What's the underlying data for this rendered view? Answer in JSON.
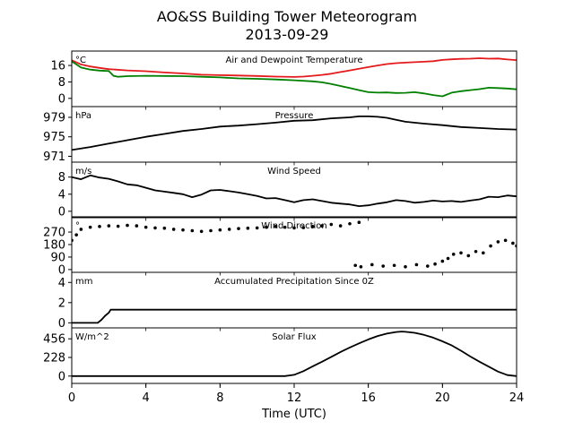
{
  "figure": {
    "title_line1": "AO&SS Building Tower Meteorogram",
    "title_line2": "2013-09-29",
    "xlabel": "Time (UTC)",
    "x_ticks": [
      "0",
      "4",
      "8",
      "12",
      "16",
      "20",
      "24"
    ]
  },
  "chart_data": [
    {
      "type": "line",
      "title": "Air and Dewpoint Temperature",
      "unit": "°C",
      "xlim": [
        0,
        24
      ],
      "ylim": [
        -4,
        23
      ],
      "yticks": [
        0,
        8,
        16
      ],
      "series": [
        {
          "color": "#e41a1c",
          "x": [
            0,
            0.25,
            0.5,
            1,
            1.5,
            2,
            3,
            4,
            5,
            6,
            7,
            8,
            9,
            10,
            11,
            12,
            12.5,
            13,
            13.5,
            14,
            14.5,
            15,
            15.5,
            16,
            16.5,
            17,
            17.5,
            18,
            18.5,
            19,
            19.5,
            20,
            20.5,
            21,
            21.5,
            22,
            22.5,
            23,
            23.5,
            24
          ],
          "y": [
            18.5,
            17.5,
            16.5,
            15.5,
            14.8,
            14.2,
            13.6,
            13.2,
            12.6,
            12.1,
            11.5,
            11.3,
            11.1,
            10.9,
            10.6,
            10.4,
            10.6,
            11.0,
            11.4,
            12.0,
            12.8,
            13.6,
            14.4,
            15.2,
            16.0,
            16.7,
            17.1,
            17.4,
            17.6,
            17.8,
            18.1,
            18.7,
            19.0,
            19.2,
            19.3,
            19.5,
            19.3,
            19.4,
            18.9,
            18.6
          ]
        },
        {
          "color": "#008000",
          "x": [
            0,
            0.25,
            0.5,
            1,
            1.5,
            2,
            2.25,
            2.5,
            3,
            4,
            5,
            6,
            7,
            8,
            9,
            10,
            11,
            12,
            13,
            13.5,
            14,
            14.5,
            15,
            15.5,
            16,
            16.5,
            17,
            17.5,
            18,
            18.5,
            19,
            19.5,
            20,
            20.5,
            21,
            21.5,
            22,
            22.5,
            23,
            23.5,
            24
          ],
          "y": [
            18.0,
            16.5,
            15.0,
            14.0,
            13.5,
            13.3,
            11.0,
            10.5,
            10.8,
            11.0,
            10.9,
            10.8,
            10.5,
            10.2,
            9.7,
            9.5,
            9.2,
            8.8,
            8.3,
            7.8,
            7.0,
            6.0,
            5.0,
            4.0,
            3.0,
            2.8,
            2.9,
            2.6,
            2.7,
            3.0,
            2.4,
            1.6,
            1.0,
            2.8,
            3.5,
            4.0,
            4.5,
            5.2,
            5.0,
            4.8,
            4.4
          ]
        }
      ]
    },
    {
      "type": "line",
      "title": "Pressure",
      "unit": "hPa",
      "xlim": [
        0,
        24
      ],
      "ylim": [
        969.8,
        981.2
      ],
      "yticks": [
        971,
        975,
        979
      ],
      "series": [
        {
          "color": "#000000",
          "x": [
            0,
            1,
            2,
            3,
            4,
            5,
            6,
            7,
            8,
            9,
            10,
            11,
            12,
            13,
            14,
            15,
            15.5,
            16,
            16.5,
            17,
            17.5,
            18,
            19,
            20,
            21,
            22,
            23,
            24
          ],
          "y": [
            972.3,
            972.9,
            973.6,
            974.3,
            975.0,
            975.6,
            976.2,
            976.6,
            977.1,
            977.3,
            977.6,
            977.9,
            978.3,
            978.4,
            978.8,
            979.0,
            979.2,
            979.2,
            979.1,
            978.9,
            978.5,
            978.1,
            977.7,
            977.4,
            977.0,
            976.8,
            976.6,
            976.5
          ]
        }
      ]
    },
    {
      "type": "line",
      "title": "Wind Speed",
      "unit": "m/s",
      "xlim": [
        0,
        24
      ],
      "ylim": [
        -1.5,
        11.5
      ],
      "yticks": [
        0,
        4,
        8
      ],
      "series": [
        {
          "color": "#000000",
          "x": [
            0,
            0.5,
            1,
            1.5,
            2,
            2.5,
            3,
            3.5,
            4,
            4.5,
            5,
            5.5,
            6,
            6.5,
            7,
            7.5,
            8,
            8.5,
            9,
            9.5,
            10,
            10.5,
            11,
            11.5,
            12,
            12.5,
            13,
            13.5,
            14,
            14.5,
            15,
            15.5,
            16,
            16.5,
            17,
            17.5,
            18,
            18.5,
            19,
            19.5,
            20,
            20.5,
            21,
            21.5,
            22,
            22.5,
            23,
            23.5,
            24
          ],
          "y": [
            8.0,
            7.5,
            8.4,
            7.9,
            7.6,
            7.0,
            6.3,
            6.1,
            5.5,
            4.9,
            4.6,
            4.3,
            4.0,
            3.3,
            3.9,
            4.9,
            5.0,
            4.7,
            4.4,
            4.0,
            3.6,
            3.0,
            3.1,
            2.6,
            2.1,
            2.6,
            2.8,
            2.4,
            2.0,
            1.8,
            1.6,
            1.2,
            1.4,
            1.8,
            2.1,
            2.6,
            2.4,
            2.0,
            2.2,
            2.5,
            2.3,
            2.4,
            2.2,
            2.5,
            2.8,
            3.4,
            3.3,
            3.7,
            3.5
          ]
        }
      ]
    },
    {
      "type": "scatter",
      "title": "Wind Direction",
      "unit": "°",
      "xlim": [
        0,
        24
      ],
      "ylim": [
        -20,
        380
      ],
      "yticks": [
        0,
        90,
        180,
        270
      ],
      "series": [
        {
          "color": "#000000",
          "x": [
            0,
            0.25,
            0.5,
            1,
            1.5,
            2,
            2.5,
            3,
            3.5,
            4,
            4.5,
            5,
            5.5,
            6,
            6.5,
            7,
            7.5,
            8,
            8.5,
            9,
            9.5,
            10,
            10.5,
            11,
            11.5,
            12,
            12.5,
            13,
            13.5,
            14,
            14.5,
            15,
            15.5,
            15.3,
            15.6,
            16.2,
            16.8,
            17.4,
            18.0,
            18.6,
            19.2,
            19.6,
            20.0,
            20.3,
            20.6,
            21.0,
            21.4,
            21.8,
            22.2,
            22.6,
            23.0,
            23.4,
            23.8,
            24
          ],
          "y": [
            210,
            250,
            290,
            305,
            310,
            315,
            312,
            318,
            315,
            305,
            300,
            298,
            290,
            285,
            280,
            275,
            280,
            285,
            290,
            295,
            298,
            300,
            305,
            310,
            305,
            300,
            302,
            310,
            315,
            325,
            315,
            330,
            340,
            30,
            20,
            35,
            25,
            30,
            20,
            35,
            25,
            40,
            60,
            80,
            110,
            120,
            100,
            130,
            120,
            170,
            200,
            210,
            190,
            170
          ]
        }
      ]
    },
    {
      "type": "line",
      "title": "Accumulated Precipitation Since 0Z",
      "unit": "mm",
      "xlim": [
        0,
        24
      ],
      "ylim": [
        -0.5,
        5.0
      ],
      "yticks": [
        0,
        2,
        4
      ],
      "series": [
        {
          "color": "#000000",
          "x": [
            0,
            1.4,
            1.6,
            1.8,
            2.0,
            2.1,
            24
          ],
          "y": [
            0,
            0,
            0.3,
            0.7,
            1.0,
            1.3,
            1.3
          ]
        }
      ]
    },
    {
      "type": "line",
      "title": "Solar Flux",
      "unit": "W/m^2",
      "xlim": [
        0,
        24
      ],
      "ylim": [
        -90,
        590
      ],
      "yticks": [
        0,
        228,
        456
      ],
      "series": [
        {
          "color": "#000000",
          "x": [
            0,
            11.5,
            12.0,
            12.5,
            13,
            13.5,
            14,
            14.5,
            15,
            15.5,
            16,
            16.5,
            17,
            17.5,
            17.8,
            18,
            18.5,
            19,
            19.5,
            20,
            20.5,
            21,
            21.5,
            22,
            22.5,
            23,
            23.5,
            24
          ],
          "y": [
            0,
            0,
            15,
            60,
            120,
            175,
            235,
            295,
            350,
            400,
            448,
            490,
            520,
            540,
            545,
            542,
            530,
            505,
            470,
            425,
            375,
            310,
            240,
            175,
            115,
            55,
            12,
            0
          ]
        }
      ]
    }
  ]
}
